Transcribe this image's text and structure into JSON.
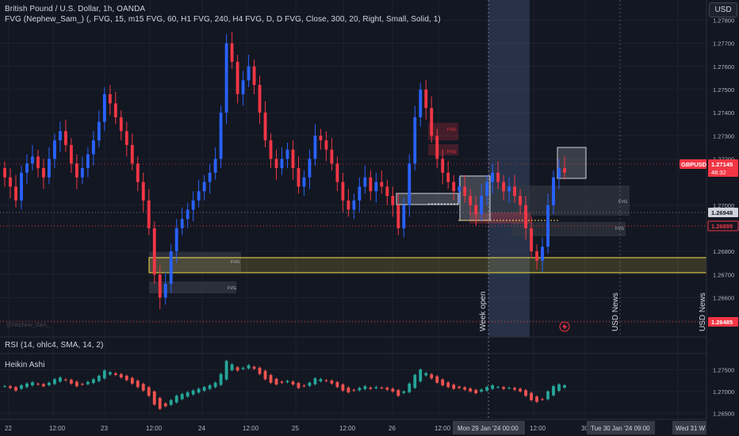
{
  "header": {
    "title": "British Pound / U.S. Dollar, 1h, OANDA",
    "indicator": "FVG (Nephew_Sam_) (, FVG, 15, m15 FVG, 60, H1 FVG, 240, H4 FVG, D, D FVG, Close, 300, 20, Right, Small, Solid, 1)",
    "currency_button": "USD"
  },
  "price_axis": {
    "ticks": [
      "1.27800",
      "1.27700",
      "1.27600",
      "1.27500",
      "1.27400",
      "1.27300",
      "1.27200",
      "1.27000",
      "1.26800",
      "1.26700",
      "1.26600",
      "1.26500"
    ],
    "symbol_tag": "GBPUSD",
    "last_price": "1.27145",
    "countdown": "48:32",
    "level_gray": "1.26948",
    "level_red": "1.26895",
    "level_low": "1.26485"
  },
  "annotations": {
    "fvg_label": "FVG",
    "week_open": "Week open",
    "usd_news_1": "USD News",
    "usd_news_2": "USD News",
    "watermark": "@Nephew_Sam_"
  },
  "rsi_panel": {
    "label": "RSI (14, ohlc4, SMA, 14, 2)"
  },
  "ha_panel": {
    "label": "Heikin Ashi",
    "ticks": [
      "1.27500",
      "1.27000",
      "1.26500"
    ]
  },
  "time_axis": {
    "ticks": [
      "22",
      "12:00",
      "23",
      "12:00",
      "24",
      "12:00",
      "25",
      "12:00",
      "26",
      "12:00",
      "12:00",
      "30",
      "Wed 31"
    ],
    "highlight_1": "Mon 29 Jan '24   00:00",
    "highlight_2": "Tue 30 Jan '24   09:00",
    "highlight_3": "Wed 31  W"
  },
  "colors": {
    "background": "#131722",
    "bull": "#2962ff",
    "bear": "#f23645",
    "ha_bull": "#26a69a",
    "ha_bear": "#ef5350",
    "fvg_box": "#363a45",
    "yellow": "#f7e04b",
    "text": "#b2b5be"
  },
  "chart_data": {
    "type": "candlestick",
    "symbol": "GBPUSD",
    "timeframe": "1h",
    "y_range": [
      1.2645,
      1.2785
    ],
    "x_ticks": [
      "22",
      "12:00",
      "23",
      "12:00",
      "24",
      "12:00",
      "25",
      "12:00",
      "26",
      "12:00",
      "Mon 29 Jan '24 00:00",
      "12:00",
      "30",
      "Tue 30 Jan '24 09:00",
      "Wed 31"
    ],
    "close": [
      1.2712,
      1.2708,
      1.2702,
      1.2714,
      1.2718,
      1.2721,
      1.2716,
      1.2712,
      1.272,
      1.2728,
      1.2732,
      1.2726,
      1.2718,
      1.2712,
      1.2716,
      1.2722,
      1.2728,
      1.2736,
      1.2748,
      1.2744,
      1.2738,
      1.2732,
      1.2726,
      1.2718,
      1.271,
      1.2702,
      1.269,
      1.267,
      1.266,
      1.2666,
      1.268,
      1.269,
      1.2694,
      1.2698,
      1.2702,
      1.2706,
      1.271,
      1.2714,
      1.272,
      1.274,
      1.277,
      1.2762,
      1.2748,
      1.2754,
      1.276,
      1.2752,
      1.274,
      1.2728,
      1.272,
      1.2716,
      1.272,
      1.2724,
      1.2716,
      1.2708,
      1.2712,
      1.272,
      1.273,
      1.2728,
      1.2724,
      1.2718,
      1.271,
      1.2702,
      1.2698,
      1.2702,
      1.2708,
      1.2712,
      1.2706,
      1.271,
      1.2708,
      1.2704,
      1.27,
      1.269,
      1.27,
      1.2718,
      1.2738,
      1.275,
      1.2742,
      1.273,
      1.272,
      1.2714,
      1.271,
      1.2706,
      1.2708,
      1.2704,
      1.27,
      1.2696,
      1.2704,
      1.271,
      1.2714,
      1.271,
      1.2706,
      1.2708,
      1.2704,
      1.27,
      1.269,
      1.268,
      1.2676,
      1.2682,
      1.27,
      1.2712,
      1.2716,
      1.2714
    ],
    "heikin_ashi_range": [
      1.2645,
      1.2765
    ],
    "rsi": {
      "length": 14,
      "source": "ohlc4",
      "smoothing": "SMA"
    }
  }
}
